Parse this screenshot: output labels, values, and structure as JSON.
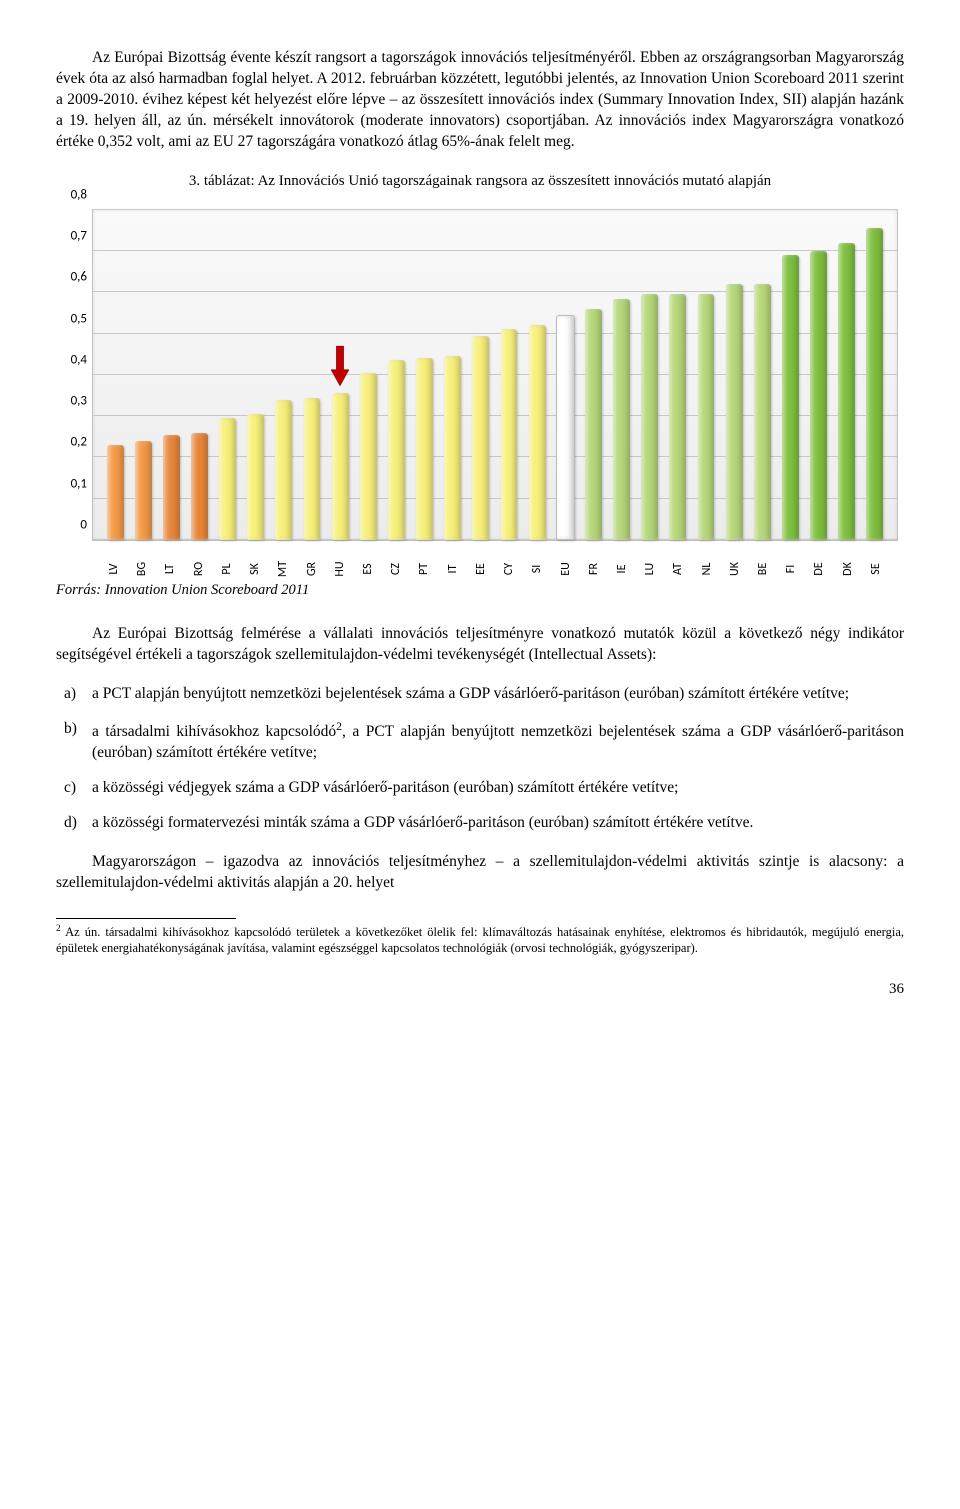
{
  "para1": "Az Európai Bizottság évente készít rangsort a tagországok innovációs teljesítményéről. Ebben az országrangsorban Magyarország évek óta az alsó harmadban foglal helyet. A 2012. februárban közzétett, legutóbbi jelentés, az Innovation Union Scoreboard 2011 szerint a 2009-2010. évihez képest két helyezést előre lépve – az összesített innovációs index (Summary Innovation Index, SII) alapján hazánk a 19. helyen áll, az ún. mérsékelt innovátorok (moderate innovators) csoportjában. Az innovációs index Magyarországra vonatkozó értéke 0,352 volt, ami az EU 27 tagországára vonatkozó átlag 65%-ának felelt meg.",
  "tableCaption": "3. táblázat: Az Innovációs Unió tagországainak rangsora az összesített innovációs mutató alapján",
  "chart": {
    "ymax": 0.8,
    "ytick_step": 0.1,
    "yticks": [
      "0",
      "0,1",
      "0,2",
      "0,3",
      "0,4",
      "0,5",
      "0,6",
      "0,7",
      "0,8"
    ],
    "background": "#f2f2f2",
    "grid_color": "#c8c8c8",
    "colors": {
      "orange": "#f39a47",
      "dark_orange": "#e8863a",
      "yellow": "#f7f07a",
      "white": "#ffffff",
      "lightgreen": "#b6d77a",
      "green": "#7fbf3f"
    },
    "arrow_color": "#c00000",
    "highlight_index": 8,
    "bars": [
      {
        "label": "LV",
        "value": 0.23,
        "group": "orange"
      },
      {
        "label": "BG",
        "value": 0.24,
        "group": "orange"
      },
      {
        "label": "LT",
        "value": 0.255,
        "group": "dark_orange"
      },
      {
        "label": "RO",
        "value": 0.26,
        "group": "dark_orange"
      },
      {
        "label": "PL",
        "value": 0.295,
        "group": "yellow"
      },
      {
        "label": "SK",
        "value": 0.305,
        "group": "yellow"
      },
      {
        "label": "MT",
        "value": 0.34,
        "group": "yellow"
      },
      {
        "label": "GR",
        "value": 0.345,
        "group": "yellow"
      },
      {
        "label": "HU",
        "value": 0.355,
        "group": "yellow"
      },
      {
        "label": "ES",
        "value": 0.405,
        "group": "yellow"
      },
      {
        "label": "CZ",
        "value": 0.435,
        "group": "yellow"
      },
      {
        "label": "PT",
        "value": 0.44,
        "group": "yellow"
      },
      {
        "label": "IT",
        "value": 0.445,
        "group": "yellow"
      },
      {
        "label": "EE",
        "value": 0.495,
        "group": "yellow"
      },
      {
        "label": "CY",
        "value": 0.51,
        "group": "yellow"
      },
      {
        "label": "SI",
        "value": 0.52,
        "group": "yellow"
      },
      {
        "label": "EU",
        "value": 0.54,
        "group": "white"
      },
      {
        "label": "FR",
        "value": 0.56,
        "group": "lightgreen"
      },
      {
        "label": "IE",
        "value": 0.585,
        "group": "lightgreen"
      },
      {
        "label": "LU",
        "value": 0.595,
        "group": "lightgreen"
      },
      {
        "label": "AT",
        "value": 0.595,
        "group": "lightgreen"
      },
      {
        "label": "NL",
        "value": 0.595,
        "group": "lightgreen"
      },
      {
        "label": "UK",
        "value": 0.62,
        "group": "lightgreen"
      },
      {
        "label": "BE",
        "value": 0.62,
        "group": "lightgreen"
      },
      {
        "label": "FI",
        "value": 0.69,
        "group": "green"
      },
      {
        "label": "DE",
        "value": 0.7,
        "group": "green"
      },
      {
        "label": "DK",
        "value": 0.72,
        "group": "green"
      },
      {
        "label": "SE",
        "value": 0.755,
        "group": "green"
      }
    ]
  },
  "source": "Forrás: Innovation Union Scoreboard 2011",
  "para2": "Az Európai Bizottság felmérése a vállalati innovációs teljesítményre vonatkozó mutatók közül a következő négy indikátor segítségével értékeli a tagországok szellemitulajdon-védelmi tevékenységét (Intellectual Assets):",
  "list": {
    "a": "a PCT alapján benyújtott nemzetközi bejelentések száma a GDP vásárlóerő-paritáson (euróban) számított értékére vetítve;",
    "b_pre": "a társadalmi kihívásokhoz kapcsolódó",
    "b_post": ", a PCT alapján benyújtott nemzetközi bejelentések száma a GDP vásárlóerő-paritáson (euróban) számított értékére vetítve;",
    "c": "a közösségi védjegyek száma a GDP vásárlóerő-paritáson (euróban) számított értékére vetítve;",
    "d": "a közösségi formatervezési minták száma a GDP vásárlóerő-paritáson (euróban) számított értékére vetítve."
  },
  "para3": "Magyarországon – igazodva az innovációs teljesítményhez – a szellemitulajdon-védelmi aktivitás szintje is alacsony: a szellemitulajdon-védelmi aktivitás alapján a 20. helyet",
  "footnote_marker": "2",
  "footnote": "Az ún. társadalmi kihívásokhoz kapcsolódó területek a következőket ölelik fel: klímaváltozás hatásainak enyhítése, elektromos és hibridautók, megújuló energia, épületek energiahatékonyságának javítása, valamint egészséggel kapcsolatos technológiák (orvosi technológiák, gyógyszeripar).",
  "page_number": "36"
}
